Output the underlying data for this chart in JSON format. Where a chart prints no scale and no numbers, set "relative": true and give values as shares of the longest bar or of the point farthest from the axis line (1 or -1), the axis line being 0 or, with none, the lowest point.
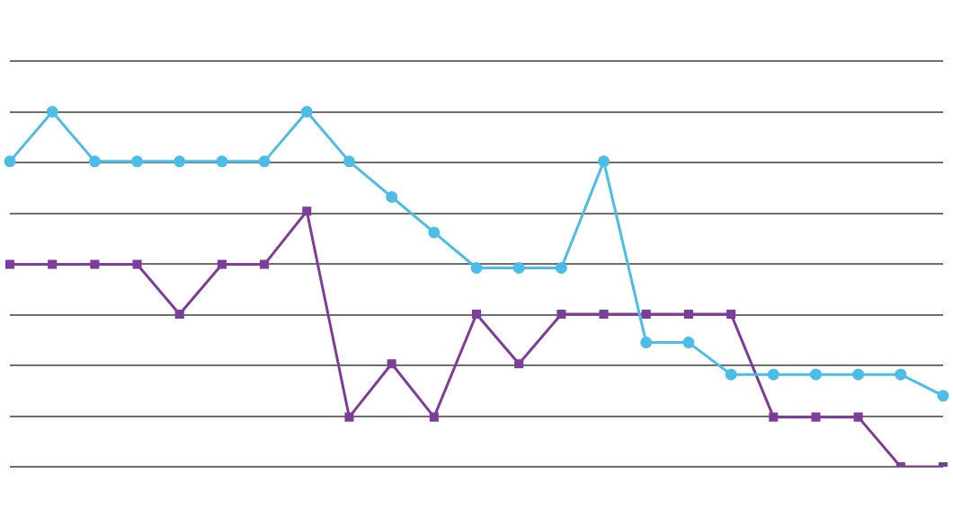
{
  "chart_data": {
    "type": "line",
    "relative": true,
    "grid": "y",
    "legend": false,
    "categories": [
      null,
      null,
      null,
      null,
      null,
      null,
      null,
      null,
      null,
      null,
      null,
      null,
      null,
      null,
      null,
      null,
      null,
      null,
      null,
      null,
      null,
      null,
      null
    ],
    "series": [
      {
        "color": "#4bbde6",
        "marker": "circle",
        "values": [
          0.86,
          1,
          0.86,
          0.86,
          0.86,
          0.86,
          0.86,
          1,
          0.86,
          0.76,
          0.66,
          0.56,
          0.56,
          0.56,
          0.86,
          0.35,
          0.35,
          0.26,
          0.26,
          0.26,
          0.26,
          0.26,
          0.2
        ]
      },
      {
        "color": "#7d3d9b",
        "marker": "square",
        "values": [
          0.57,
          0.57,
          0.57,
          0.57,
          0.43,
          0.57,
          0.57,
          0.72,
          0.14,
          0.29,
          0.14,
          0.43,
          0.29,
          0.43,
          0.43,
          0.43,
          0.43,
          0.43,
          0.14,
          0.14,
          0.14,
          0,
          0
        ]
      }
    ]
  }
}
